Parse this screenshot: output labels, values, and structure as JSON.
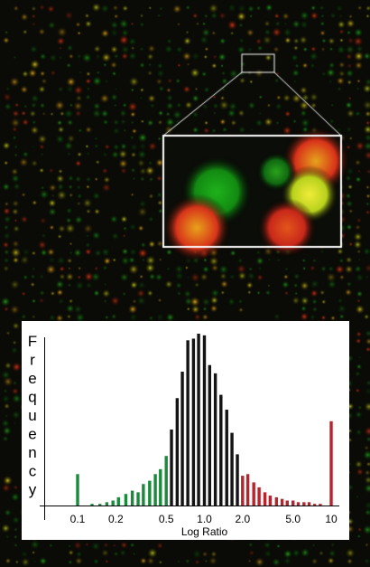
{
  "figure": {
    "description_colors": {
      "background": "#0a0a06",
      "green_spot": "#1fa21c",
      "red_spot": "#e0261a",
      "yellow_spot": "#e8d81a",
      "panel_bg": "#ffffff",
      "bar_green": "#1b8a3c",
      "bar_black": "#141414",
      "bar_red": "#b8232c"
    }
  },
  "chart_data": {
    "type": "bar",
    "title": "",
    "ylabel": "Frequency",
    "xlabel": "Log Ratio",
    "x_scale": "log",
    "x_tick_labels": [
      "0.1",
      "0.2",
      "0.5",
      "1.0",
      "2.0",
      "5.0",
      "10"
    ],
    "x_ticks": [
      0.1,
      0.2,
      0.5,
      1.0,
      2.0,
      5.0,
      10
    ],
    "xlim": [
      0.1,
      10
    ],
    "ylim": [
      0,
      100
    ],
    "bars": [
      {
        "x": 0.1,
        "value": 19,
        "color": "green"
      },
      {
        "x": 0.13,
        "value": 1,
        "color": "green"
      },
      {
        "x": 0.15,
        "value": 1,
        "color": "green"
      },
      {
        "x": 0.17,
        "value": 2,
        "color": "green"
      },
      {
        "x": 0.19,
        "value": 3,
        "color": "green"
      },
      {
        "x": 0.21,
        "value": 5,
        "color": "green"
      },
      {
        "x": 0.24,
        "value": 7,
        "color": "green"
      },
      {
        "x": 0.27,
        "value": 9,
        "color": "green"
      },
      {
        "x": 0.3,
        "value": 8,
        "color": "green"
      },
      {
        "x": 0.33,
        "value": 13,
        "color": "green"
      },
      {
        "x": 0.37,
        "value": 15,
        "color": "green"
      },
      {
        "x": 0.41,
        "value": 19,
        "color": "green"
      },
      {
        "x": 0.45,
        "value": 22,
        "color": "green"
      },
      {
        "x": 0.5,
        "value": 30,
        "color": "green"
      },
      {
        "x": 0.55,
        "value": 46,
        "color": "black"
      },
      {
        "x": 0.61,
        "value": 65,
        "color": "black"
      },
      {
        "x": 0.67,
        "value": 81,
        "color": "black"
      },
      {
        "x": 0.74,
        "value": 100,
        "color": "black"
      },
      {
        "x": 0.82,
        "value": 101,
        "color": "black"
      },
      {
        "x": 0.9,
        "value": 104,
        "color": "black"
      },
      {
        "x": 1.0,
        "value": 103,
        "color": "black"
      },
      {
        "x": 1.1,
        "value": 85,
        "color": "black"
      },
      {
        "x": 1.22,
        "value": 80,
        "color": "black"
      },
      {
        "x": 1.35,
        "value": 67,
        "color": "black"
      },
      {
        "x": 1.5,
        "value": 58,
        "color": "black"
      },
      {
        "x": 1.65,
        "value": 44,
        "color": "black"
      },
      {
        "x": 1.82,
        "value": 31,
        "color": "black"
      },
      {
        "x": 2.0,
        "value": 18,
        "color": "red"
      },
      {
        "x": 2.2,
        "value": 19,
        "color": "red"
      },
      {
        "x": 2.45,
        "value": 14,
        "color": "red"
      },
      {
        "x": 2.7,
        "value": 11,
        "color": "red"
      },
      {
        "x": 3.0,
        "value": 8,
        "color": "red"
      },
      {
        "x": 3.3,
        "value": 6,
        "color": "red"
      },
      {
        "x": 3.7,
        "value": 5,
        "color": "red"
      },
      {
        "x": 4.1,
        "value": 4,
        "color": "red"
      },
      {
        "x": 4.5,
        "value": 3,
        "color": "red"
      },
      {
        "x": 5.0,
        "value": 3,
        "color": "red"
      },
      {
        "x": 5.5,
        "value": 2,
        "color": "red"
      },
      {
        "x": 6.1,
        "value": 2,
        "color": "red"
      },
      {
        "x": 6.7,
        "value": 2,
        "color": "red"
      },
      {
        "x": 7.4,
        "value": 1,
        "color": "red"
      },
      {
        "x": 8.2,
        "value": 1,
        "color": "red"
      },
      {
        "x": 10,
        "value": 51,
        "color": "red"
      }
    ],
    "grid": false,
    "legend": "none"
  }
}
